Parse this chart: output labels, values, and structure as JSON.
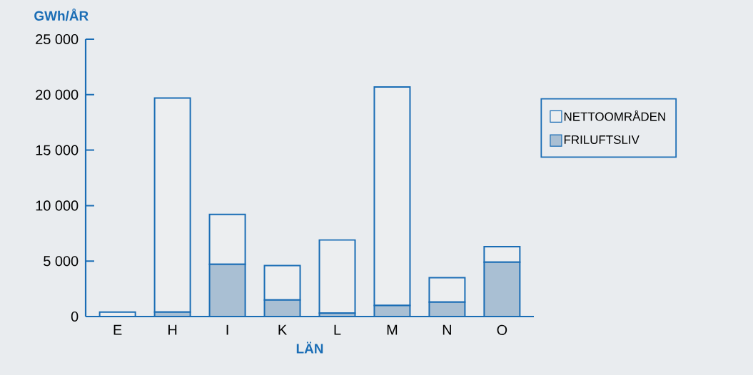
{
  "chart_data": {
    "type": "bar",
    "stacked": true,
    "ylabel": "GWh/ÅR",
    "xlabel": "LÄN",
    "categories": [
      "E",
      "H",
      "I",
      "K",
      "L",
      "M",
      "N",
      "O"
    ],
    "series": [
      {
        "name": "FRILUFTSLIV",
        "color": "#a9bfd3",
        "values": [
          0,
          400,
          4700,
          1500,
          300,
          1000,
          1300,
          4900
        ]
      },
      {
        "name": "NETTOOMRÅDEN",
        "color": "#eceef0",
        "values": [
          400,
          19300,
          4500,
          3100,
          6600,
          19700,
          2200,
          1400
        ]
      }
    ],
    "ylim": [
      0,
      25000
    ],
    "yticks": [
      {
        "value": 0,
        "label": "0"
      },
      {
        "value": 5000,
        "label": "5 000"
      },
      {
        "value": 10000,
        "label": "10 000"
      },
      {
        "value": 15000,
        "label": "15 000"
      },
      {
        "value": 20000,
        "label": "20 000"
      },
      {
        "value": 25000,
        "label": "25 000"
      }
    ],
    "legend": "right",
    "grid": false
  }
}
